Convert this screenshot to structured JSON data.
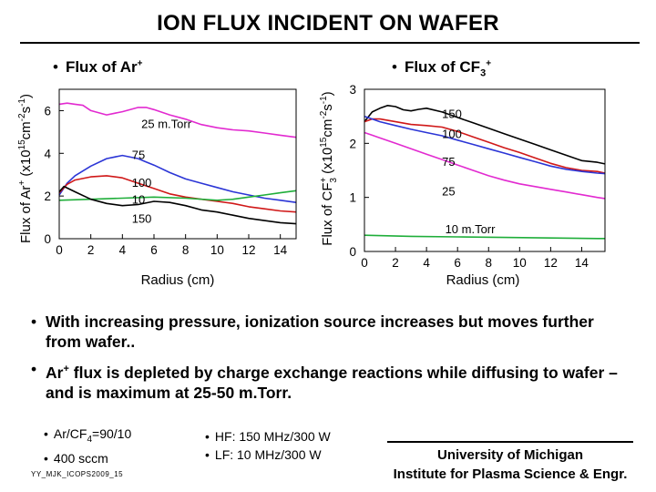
{
  "title": "ION FLUX INCIDENT ON WAFER",
  "bullet_symbol": "•",
  "left_chart_heading": {
    "prefix": "Flux of Ar",
    "sup": "+"
  },
  "right_chart_heading": {
    "prefix": "Flux of CF",
    "sub": "3",
    "sup": "+"
  },
  "chart_data": [
    {
      "type": "line",
      "title": "Flux of Ar+",
      "xlabel": "Radius (cm)",
      "ylabel": "Flux of Ar+ (x10^15 cm^-2 s^-1)",
      "ylabel_parts": {
        "a": "Flux of Ar",
        "b": "+",
        "c": " (x10",
        "d": "15",
        "e": "cm",
        "f": "-2",
        "g": "s",
        "h": "-1",
        "i": ")"
      },
      "xlim": [
        0,
        15
      ],
      "ylim": [
        0,
        7
      ],
      "xticks": [
        "0",
        "2",
        "4",
        "6",
        "8",
        "10",
        "12",
        "14"
      ],
      "yticks": [
        "0",
        "2",
        "4",
        "6"
      ],
      "series": [
        {
          "name": "25 m.Torr",
          "color": "#e22ad0",
          "x": [
            0,
            0.5,
            1,
            1.5,
            2,
            3,
            4,
            5,
            5.5,
            6,
            7,
            8,
            9,
            10,
            11,
            12,
            13,
            14,
            15
          ],
          "y": [
            6.3,
            6.35,
            6.3,
            6.25,
            6.0,
            5.8,
            5.95,
            6.15,
            6.15,
            6.05,
            5.8,
            5.6,
            5.35,
            5.2,
            5.1,
            5.05,
            4.95,
            4.85,
            4.75
          ]
        },
        {
          "name": "75",
          "color": "#2b35d6",
          "x": [
            0,
            0.5,
            1,
            2,
            3,
            4,
            5,
            5.5,
            6,
            7,
            8,
            9,
            10,
            11,
            12,
            13,
            14,
            15
          ],
          "y": [
            2.05,
            2.6,
            2.95,
            3.4,
            3.75,
            3.9,
            3.75,
            3.6,
            3.45,
            3.1,
            2.8,
            2.6,
            2.4,
            2.2,
            2.05,
            1.9,
            1.8,
            1.7
          ]
        },
        {
          "name": "100",
          "color": "#d01818",
          "x": [
            0,
            0.5,
            1,
            2,
            3,
            4,
            5,
            6,
            7,
            8,
            9,
            10,
            11,
            12,
            13,
            14,
            15
          ],
          "y": [
            2.15,
            2.55,
            2.75,
            2.9,
            2.95,
            2.85,
            2.6,
            2.35,
            2.1,
            1.95,
            1.85,
            1.75,
            1.65,
            1.5,
            1.4,
            1.3,
            1.25
          ]
        },
        {
          "name": "10",
          "color": "#1fae3a",
          "x": [
            0,
            2,
            4,
            6,
            8,
            10,
            11,
            12,
            13,
            14,
            15
          ],
          "y": [
            1.8,
            1.85,
            1.9,
            1.95,
            1.9,
            1.8,
            1.85,
            1.95,
            2.05,
            2.15,
            2.25
          ]
        },
        {
          "name": "150",
          "color": "#000000",
          "x": [
            0,
            0.3,
            1,
            2,
            3,
            4,
            5,
            6,
            7,
            8,
            9,
            10,
            11,
            12,
            13,
            14,
            15
          ],
          "y": [
            2.2,
            2.45,
            2.2,
            1.85,
            1.65,
            1.55,
            1.6,
            1.75,
            1.7,
            1.55,
            1.35,
            1.25,
            1.1,
            0.95,
            0.85,
            0.75,
            0.7
          ]
        }
      ]
    },
    {
      "type": "line",
      "title": "Flux of CF3+",
      "xlabel": "Radius (cm)",
      "ylabel": "Flux of CF3+ (x10^15 cm^-2 s^-1)",
      "ylabel_parts": {
        "a": "Flux of CF",
        "b": "+",
        "b2": "3",
        "c": " (x10",
        "d": "15",
        "e": "cm",
        "f": "-2",
        "g": "s",
        "h": "-1",
        "i": ")"
      },
      "xlim": [
        0,
        15.5
      ],
      "ylim": [
        0,
        3
      ],
      "xticks": [
        "0",
        "2",
        "4",
        "6",
        "8",
        "10",
        "12",
        "14"
      ],
      "yticks": [
        "0",
        "1",
        "2",
        "3"
      ],
      "series": [
        {
          "name": "150",
          "color": "#000000",
          "x": [
            0,
            0.5,
            1,
            1.5,
            2,
            2.5,
            3,
            3.5,
            4,
            5,
            6,
            7,
            8,
            9,
            10,
            11,
            12,
            13,
            14,
            15,
            15.5
          ],
          "y": [
            2.4,
            2.58,
            2.65,
            2.7,
            2.68,
            2.62,
            2.6,
            2.63,
            2.65,
            2.58,
            2.48,
            2.38,
            2.28,
            2.18,
            2.08,
            1.98,
            1.88,
            1.78,
            1.68,
            1.65,
            1.62
          ]
        },
        {
          "name": "100",
          "color": "#d01818",
          "x": [
            0,
            0.5,
            1,
            2,
            3,
            4,
            5,
            6,
            7,
            8,
            9,
            10,
            11,
            12,
            13,
            14,
            15,
            15.5
          ],
          "y": [
            2.4,
            2.45,
            2.45,
            2.4,
            2.35,
            2.33,
            2.3,
            2.22,
            2.12,
            2.02,
            1.92,
            1.83,
            1.73,
            1.63,
            1.55,
            1.5,
            1.48,
            1.45
          ]
        },
        {
          "name": "75",
          "color": "#2b35d6",
          "x": [
            0,
            0.5,
            1,
            2,
            3,
            4,
            5,
            6,
            7,
            8,
            9,
            10,
            11,
            12,
            13,
            14,
            15,
            15.5
          ],
          "y": [
            2.5,
            2.45,
            2.4,
            2.33,
            2.26,
            2.2,
            2.14,
            2.06,
            1.98,
            1.9,
            1.82,
            1.74,
            1.66,
            1.58,
            1.52,
            1.48,
            1.45,
            1.44
          ]
        },
        {
          "name": "25",
          "color": "#e22ad0",
          "x": [
            0,
            0.5,
            1,
            2,
            3,
            4,
            5,
            6,
            7,
            8,
            9,
            10,
            11,
            12,
            13,
            14,
            15,
            15.5
          ],
          "y": [
            2.2,
            2.15,
            2.1,
            2.0,
            1.9,
            1.8,
            1.7,
            1.6,
            1.5,
            1.4,
            1.32,
            1.25,
            1.2,
            1.15,
            1.1,
            1.05,
            1.0,
            0.98
          ]
        },
        {
          "name": "10 m.Torr",
          "color": "#1fae3a",
          "x": [
            0,
            3,
            6,
            9,
            12,
            15,
            15.5
          ],
          "y": [
            0.3,
            0.28,
            0.27,
            0.26,
            0.25,
            0.24,
            0.24
          ]
        }
      ]
    }
  ],
  "bullets": [
    "With increasing pressure, ionization source increases but moves further from wafer..",
    {
      "a": "Ar",
      "sup": "+",
      "b": " flux is depleted by charge exchange reactions while diffusing to wafer – and is maximum at 25-50 m.Torr."
    }
  ],
  "conditions_left": [
    {
      "a": "Ar/CF",
      "sub": "4",
      "b": "=90/10"
    },
    "400 sccm"
  ],
  "conditions_right": [
    "HF: 150 MHz/300 W",
    "LF: 10 MHz/300 W"
  ],
  "footer_id": "YY_MJK_ICOPS2009_15",
  "affiliation": [
    "University of Michigan",
    "Institute for Plasma Science & Engr."
  ]
}
